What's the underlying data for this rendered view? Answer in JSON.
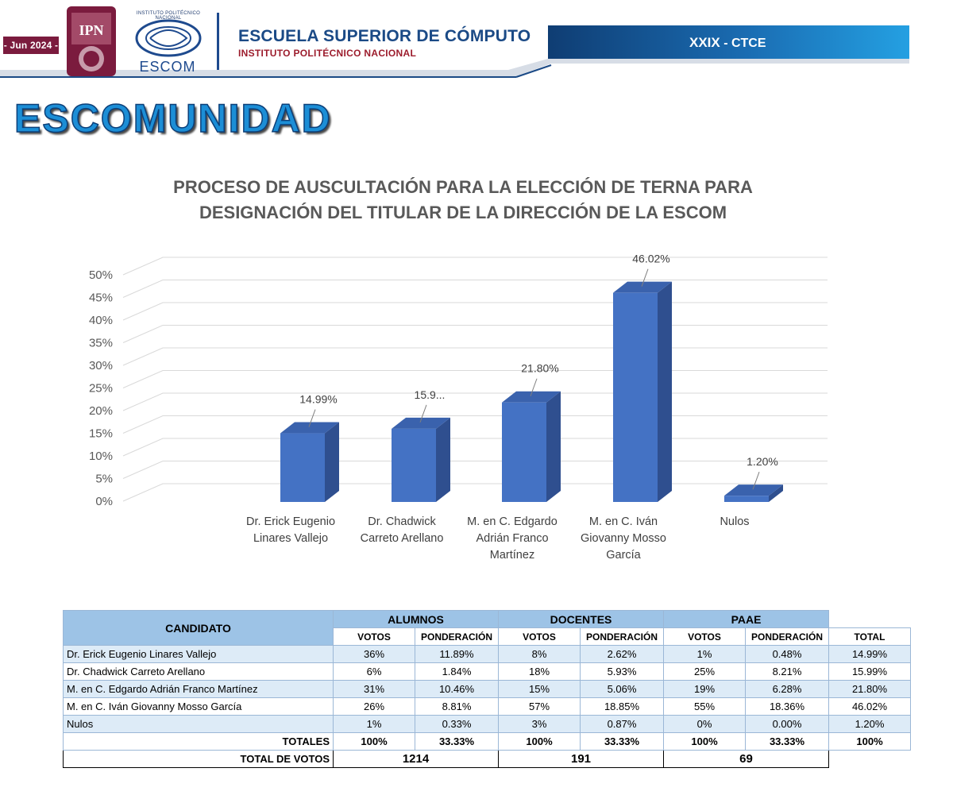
{
  "header": {
    "date_badge": "- Jun 2024 -",
    "ipn_logo_text": "IPN",
    "escom_institute_text": "INSTITUTO POLITÉCNICO NACIONAL",
    "escom_logo_text": "ESCOM",
    "school_name": "ESCUELA SUPERIOR DE CÓMPUTO",
    "school_subtitle": "INSTITUTO POLITÉCNICO NACIONAL",
    "ctce_roman": "XXIX",
    "ctce_label": " - CTCE",
    "colors": {
      "maroon": "#7b1b3e",
      "blue": "#1b4a86",
      "red": "#9c1c2c"
    }
  },
  "headline": "ESCOMUNIDAD",
  "chart_data": {
    "type": "bar",
    "style": "3d-column",
    "title_lines": [
      "PROCESO DE AUSCULTACIÓN  PARA LA ELECCIÓN DE TERNA PARA",
      "DESIGNACIÓN DEL TITULAR DE LA DIRECCIÓN DE LA ESCOM"
    ],
    "categories": [
      [
        "Dr. Erick Eugenio",
        "Linares Vallejo"
      ],
      [
        "Dr. Chadwick",
        "Carreto Arellano"
      ],
      [
        "M. en C. Edgardo",
        "Adrián Franco",
        "Martínez"
      ],
      [
        "M. en C. Iván",
        "Giovanny Mosso",
        "García"
      ],
      [
        "Nulos"
      ]
    ],
    "values": [
      14.99,
      15.99,
      21.8,
      46.02,
      1.2
    ],
    "data_labels": [
      "14.99%",
      "15.9...",
      "21.80%",
      "46.02%",
      "1.20%"
    ],
    "yticks": [
      "0%",
      "5%",
      "10%",
      "15%",
      "20%",
      "25%",
      "30%",
      "35%",
      "40%",
      "45%",
      "50%"
    ],
    "ylim": [
      0,
      50
    ],
    "grid": true,
    "bar_color": "#4472c4",
    "bar_side_color": "#2f4f8f",
    "bar_top_color": "#3a62ad"
  },
  "table": {
    "header": {
      "candidate": "CANDIDATO",
      "groups": [
        "ALUMNOS",
        "DOCENTES",
        "PAAE"
      ],
      "votos": "VOTOS",
      "ponderacion": "PONDERACIÓN",
      "total": "TOTAL"
    },
    "rows": [
      {
        "name": "Dr. Erick Eugenio Linares Vallejo",
        "cells": [
          "36%",
          "11.89%",
          "8%",
          "2.62%",
          "1%",
          "0.48%",
          "14.99%"
        ]
      },
      {
        "name": "Dr. Chadwick Carreto Arellano",
        "cells": [
          "6%",
          "1.84%",
          "18%",
          "5.93%",
          "25%",
          "8.21%",
          "15.99%"
        ]
      },
      {
        "name": "M. en C. Edgardo Adrián Franco Martínez",
        "cells": [
          "31%",
          "10.46%",
          "15%",
          "5.06%",
          "19%",
          "6.28%",
          "21.80%"
        ]
      },
      {
        "name": "M. en C. Iván Giovanny Mosso García",
        "cells": [
          "26%",
          "8.81%",
          "57%",
          "18.85%",
          "55%",
          "18.36%",
          "46.02%"
        ]
      },
      {
        "name": "Nulos",
        "cells": [
          "1%",
          "0.33%",
          "3%",
          "0.87%",
          "0%",
          "0.00%",
          "1.20%"
        ]
      }
    ],
    "totals": {
      "label": "TOTALES",
      "cells": [
        "100%",
        "33.33%",
        "100%",
        "33.33%",
        "100%",
        "33.33%",
        "100%"
      ]
    },
    "votes": {
      "label": "TOTAL DE VOTOS",
      "alumnos": "1214",
      "docentes": "191",
      "paae": "69"
    }
  }
}
